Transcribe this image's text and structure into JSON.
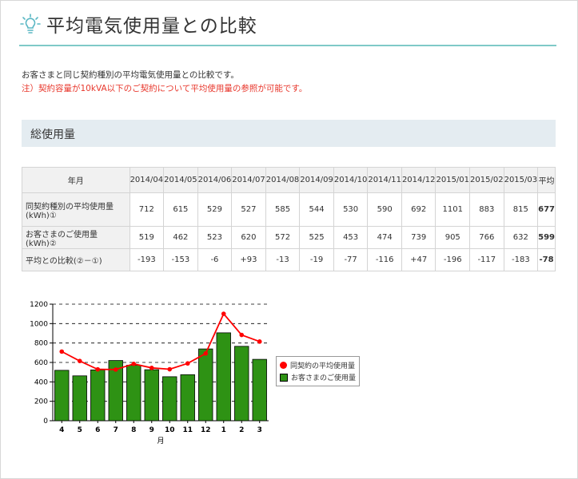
{
  "header": {
    "title": "平均電気使用量との比較"
  },
  "description": "お客さまと同じ契約種別の平均電気使用量との比較です。",
  "note": "注）契約容量が10kVA以下のご契約について平均使用量の参照が可能です。",
  "section": {
    "title": "総使用量"
  },
  "table": {
    "header_label": "年月",
    "months": [
      "2014/04",
      "2014/05",
      "2014/06",
      "2014/07",
      "2014/08",
      "2014/09",
      "2014/10",
      "2014/11",
      "2014/12",
      "2015/01",
      "2015/02",
      "2015/03"
    ],
    "avg_label": "平均",
    "rows": [
      {
        "label": "同契約種別の平均使用量(kWh)①",
        "values": [
          "712",
          "615",
          "529",
          "527",
          "585",
          "544",
          "530",
          "590",
          "692",
          "1101",
          "883",
          "815"
        ],
        "avg": "677"
      },
      {
        "label": "お客さまのご使用量(kWh)②",
        "values": [
          "519",
          "462",
          "523",
          "620",
          "572",
          "525",
          "453",
          "474",
          "739",
          "905",
          "766",
          "632"
        ],
        "avg": "599"
      },
      {
        "label": "平均との比較(②－①)",
        "values": [
          "-193",
          "-153",
          "-6",
          "+93",
          "-13",
          "-19",
          "-77",
          "-116",
          "+47",
          "-196",
          "-117",
          "-183"
        ],
        "avg": "-78"
      }
    ]
  },
  "chart_data": {
    "type": "bar",
    "categories": [
      "4",
      "5",
      "6",
      "7",
      "8",
      "9",
      "10",
      "11",
      "12",
      "1",
      "2",
      "3"
    ],
    "xlabel": "月",
    "ylabel": "",
    "ylim": [
      0,
      1200
    ],
    "yticks": [
      0,
      200,
      400,
      600,
      800,
      1000,
      1200
    ],
    "legend_position": "right",
    "series": [
      {
        "name": "同契約の平均使用量",
        "type": "line",
        "color": "#ff0000",
        "values": [
          712,
          615,
          529,
          527,
          585,
          544,
          530,
          590,
          692,
          1101,
          883,
          815
        ]
      },
      {
        "name": "お客さまのご使用量",
        "type": "bar",
        "color": "#2e9214",
        "values": [
          519,
          462,
          523,
          620,
          572,
          525,
          453,
          474,
          739,
          905,
          766,
          632
        ]
      }
    ],
    "grid": "horizontal-dashed"
  }
}
